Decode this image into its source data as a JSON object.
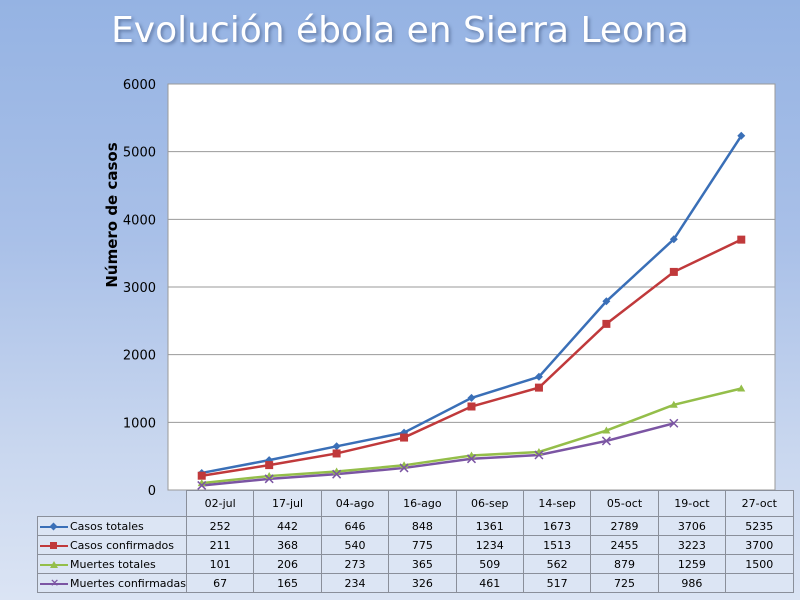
{
  "title": "Evolución ébola en Sierra Leona",
  "chart_data": {
    "type": "line",
    "title": "Evolución ébola en Sierra Leona",
    "xlabel": "",
    "ylabel": "Número de casos",
    "ylim": [
      0,
      6000
    ],
    "yticks": [
      "0",
      "1000",
      "2000",
      "3000",
      "4000",
      "5000",
      "6000"
    ],
    "grid": true,
    "legend": "data-table-left",
    "categories": [
      "02-jul",
      "17-jul",
      "04-ago",
      "16-ago",
      "06-sep",
      "14-sep",
      "05-oct",
      "19-oct",
      "27-oct"
    ],
    "series": [
      {
        "name": "Casos totales",
        "color": "#3a6fb7",
        "marker": "diamond",
        "values": [
          252,
          442,
          646,
          848,
          1361,
          1673,
          2789,
          3706,
          5235
        ]
      },
      {
        "name": "Casos confirmados",
        "color": "#c0393b",
        "marker": "square",
        "values": [
          211,
          368,
          540,
          775,
          1234,
          1513,
          2455,
          3223,
          3700
        ]
      },
      {
        "name": "Muertes totales",
        "color": "#94be4a",
        "marker": "triangle",
        "values": [
          101,
          206,
          273,
          365,
          509,
          562,
          879,
          1259,
          1500
        ]
      },
      {
        "name": "Muertes confirmadas",
        "color": "#7b55a3",
        "marker": "x",
        "values": [
          67,
          165,
          234,
          326,
          461,
          517,
          725,
          986,
          null
        ]
      }
    ]
  }
}
